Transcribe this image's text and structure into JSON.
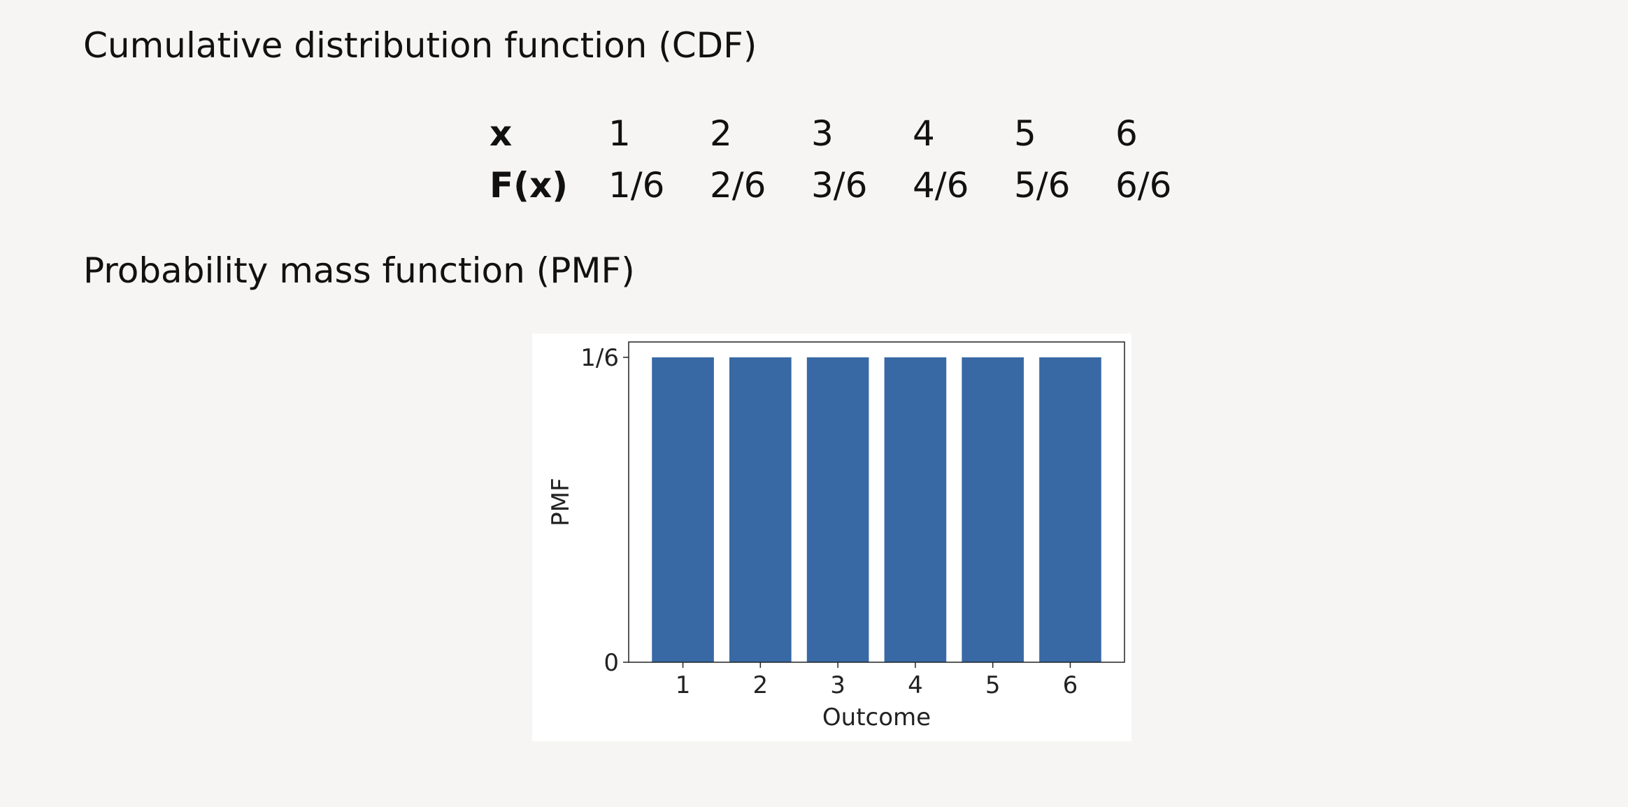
{
  "cdf": {
    "heading": "Cumulative distribution function (CDF)",
    "x_label": "x",
    "f_label": "F(x)",
    "x_values": [
      "1",
      "2",
      "3",
      "4",
      "5",
      "6"
    ],
    "f_values": [
      "1/6",
      "2/6",
      "3/6",
      "4/6",
      "5/6",
      "6/6"
    ]
  },
  "pmf": {
    "heading": "Probability mass function (PMF)"
  },
  "chart_data": {
    "type": "bar",
    "categories": [
      "1",
      "2",
      "3",
      "4",
      "5",
      "6"
    ],
    "values": [
      0.16667,
      0.16667,
      0.16667,
      0.16667,
      0.16667,
      0.16667
    ],
    "xlabel": "Outcome",
    "ylabel": "PMF",
    "ylim": [
      0,
      0.16667
    ],
    "yticks": [
      {
        "value": 0,
        "label": "0"
      },
      {
        "value": 0.16667,
        "label": "1/6"
      }
    ],
    "grid": false,
    "bar_color": "#3869a5"
  }
}
